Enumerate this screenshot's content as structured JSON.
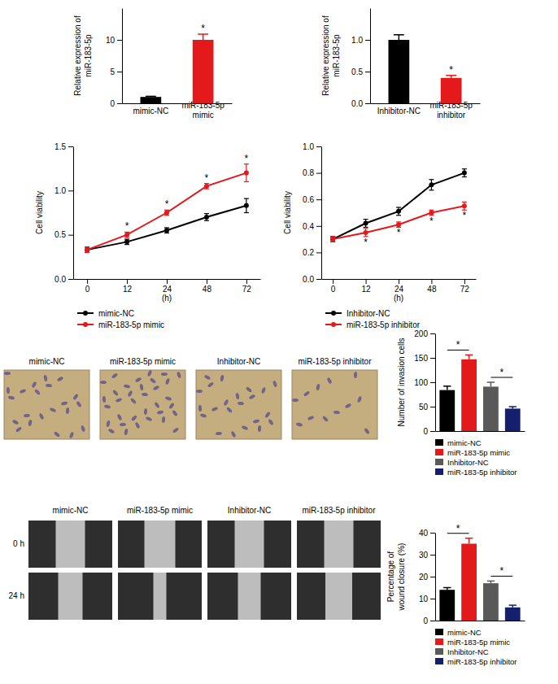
{
  "chart_data": [
    {
      "type": "bar",
      "y_label": [
        "Relative expression of",
        "miR-183-5p"
      ],
      "categories": [
        "mimic-NC",
        "miR-183-5p mimic"
      ],
      "values": [
        1.0,
        10.0
      ],
      "errors": [
        0.1,
        0.9
      ],
      "significance": [
        null,
        "*"
      ],
      "colors": [
        "#000000",
        "#e3191c"
      ],
      "ylim": [
        0,
        15
      ],
      "yticks": [
        0,
        5,
        10
      ]
    },
    {
      "type": "bar",
      "y_label": [
        "Relative expression of",
        "miR-183-5p"
      ],
      "categories": [
        "Inhibitor-NC",
        "miR-183-5p inhibitor"
      ],
      "values": [
        1.0,
        0.4
      ],
      "errors": [
        0.08,
        0.04
      ],
      "significance": [
        null,
        "*"
      ],
      "colors": [
        "#000000",
        "#e3191c"
      ],
      "ylim": [
        0,
        1.5
      ],
      "yticks": [
        {
          "value": 0,
          "label": "0.0"
        },
        0.5,
        {
          "value": 1,
          "label": "1.0"
        }
      ]
    },
    {
      "type": "line",
      "y_label": [
        "Cell viability"
      ],
      "x_label": "(h)",
      "categories": [
        0,
        12,
        24,
        48,
        72
      ],
      "series": [
        {
          "name": "mimic-NC",
          "color": "#000000",
          "marker": "circle",
          "values": [
            0.33,
            0.42,
            0.55,
            0.7,
            0.83
          ],
          "errors": [
            0.03,
            0.03,
            0.03,
            0.04,
            0.08
          ],
          "significance": [
            null,
            null,
            null,
            null,
            null
          ]
        },
        {
          "name": "miR-183-5p mimic",
          "color": "#e3191c",
          "marker": "circle",
          "values": [
            0.33,
            0.5,
            0.75,
            1.05,
            1.2
          ],
          "errors": [
            0.03,
            0.03,
            0.03,
            0.03,
            0.1
          ],
          "significance": [
            null,
            "*",
            "*",
            "*",
            "*"
          ]
        }
      ],
      "ylim": [
        0,
        1.5
      ],
      "yticks": [
        {
          "value": 0,
          "label": "0.0"
        },
        0.5,
        {
          "value": 1,
          "label": "1.0"
        },
        1.5
      ],
      "legend": "bottom"
    },
    {
      "type": "line",
      "y_label": [
        "Cell viability"
      ],
      "x_label": "(h)",
      "categories": [
        0,
        12,
        24,
        48,
        72
      ],
      "series": [
        {
          "name": "Inhibitor-NC",
          "color": "#000000",
          "marker": "circle",
          "values": [
            0.3,
            0.42,
            0.51,
            0.71,
            0.8
          ],
          "errors": [
            0.02,
            0.03,
            0.03,
            0.04,
            0.03
          ],
          "significance": [
            null,
            null,
            null,
            null,
            null
          ]
        },
        {
          "name": "miR-183-5p inhibitor",
          "color": "#e3191c",
          "marker": "circle",
          "values": [
            0.3,
            0.35,
            0.41,
            0.5,
            0.55
          ],
          "errors": [
            0.02,
            0.03,
            0.02,
            0.02,
            0.03
          ],
          "significance": [
            null,
            "*",
            "*",
            "*",
            "*"
          ]
        }
      ],
      "ylim": [
        0,
        1.0
      ],
      "yticks": [
        {
          "value": 0,
          "label": "0.0"
        },
        0.2,
        0.4,
        0.6,
        0.8,
        {
          "value": 1,
          "label": "1.0"
        }
      ],
      "legend": "bottom"
    },
    {
      "type": "bar",
      "y_label": [
        "Number of invasion cells"
      ],
      "categories": [
        "mimic-NC",
        "miR-183-5p mimic",
        "Inhibitor-NC",
        "miR-183-5p inhibitor"
      ],
      "values": [
        84,
        147,
        91,
        46
      ],
      "errors": [
        8,
        9,
        9,
        4
      ],
      "colors": [
        "#000000",
        "#e3191c",
        "#595959",
        "#14206e"
      ],
      "comparisons": [
        {
          "from": 0,
          "to": 1,
          "text": "*"
        },
        {
          "from": 2,
          "to": 3,
          "text": "*"
        }
      ],
      "ylim": [
        0,
        200
      ],
      "yticks": [
        0,
        50,
        100,
        150,
        200
      ],
      "tick_labels": "y",
      "legend": "bottom"
    },
    {
      "type": "bar",
      "y_label": [
        "Percentage of",
        "wound closure (%)"
      ],
      "categories": [
        "mimic-NC",
        "miR-183-5p mimic",
        "Inhibitor-NC",
        "miR-183-5p inhibitor"
      ],
      "values": [
        14,
        35,
        17,
        6
      ],
      "errors": [
        1,
        2.5,
        1,
        1
      ],
      "colors": [
        "#000000",
        "#e3191c",
        "#595959",
        "#14206e"
      ],
      "comparisons": [
        {
          "from": 0,
          "to": 1,
          "text": "*"
        },
        {
          "from": 2,
          "to": 3,
          "text": "*"
        }
      ],
      "ylim": [
        0,
        40
      ],
      "yticks": [
        0,
        10,
        20,
        30,
        40
      ],
      "tick_labels": "y",
      "legend": "bottom"
    }
  ],
  "micrographs": {
    "invasion": {
      "labels": [
        "mimic-NC",
        "miR-183-5p mimic",
        "Inhibitor-NC",
        "miR-183-5p inhibitor"
      ]
    },
    "wound": {
      "labels": [
        "mimic-NC",
        "miR-183-5p mimic",
        "Inhibitor-NC",
        "miR-183-5p inhibitor"
      ],
      "times": [
        "0 h",
        "24 h"
      ]
    }
  }
}
